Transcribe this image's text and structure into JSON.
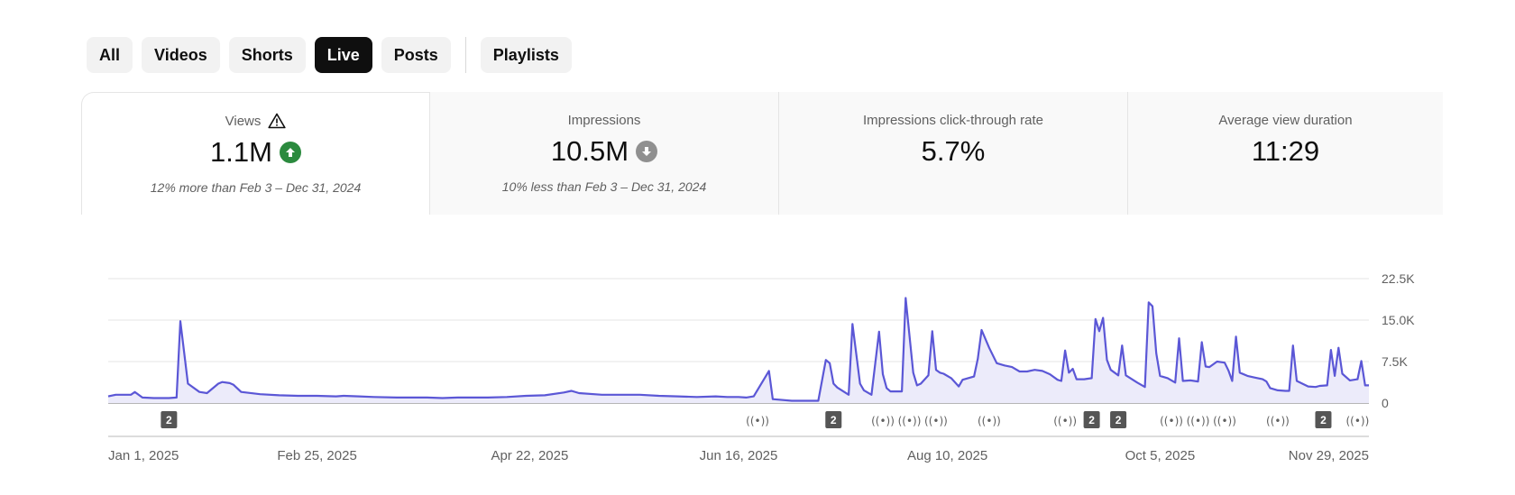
{
  "filters": {
    "chips": [
      {
        "label": "All",
        "active": false
      },
      {
        "label": "Videos",
        "active": false
      },
      {
        "label": "Shorts",
        "active": false
      },
      {
        "label": "Live",
        "active": true
      },
      {
        "label": "Posts",
        "active": false
      }
    ],
    "playlists_label": "Playlists"
  },
  "metrics": [
    {
      "title": "Views",
      "title_icon": "warning-icon",
      "value": "1.1M",
      "trend": "up",
      "trend_icon": "arrow-up-circle-icon",
      "compare": "12% more than Feb 3 – Dec 31, 2024"
    },
    {
      "title": "Impressions",
      "value": "10.5M",
      "trend": "down",
      "trend_icon": "arrow-down-circle-icon",
      "compare": "10% less than Feb 3 – Dec 31, 2024"
    },
    {
      "title": "Impressions click-through rate",
      "value": "5.7%"
    },
    {
      "title": "Average view duration",
      "value": "11:29"
    }
  ],
  "colors": {
    "line": "#5b57d6",
    "area": "#ecebfa",
    "trend_up": "#2b8a3e",
    "trend_down": "#909090",
    "active_chip": "#0f0f0f"
  },
  "chart_data": {
    "type": "area",
    "title": "",
    "xlabel": "",
    "ylabel": "",
    "ylim": [
      0,
      22500
    ],
    "y_ticks": [
      "22.5K",
      "15.0K",
      "7.5K",
      "0"
    ],
    "y_tick_values": [
      22500,
      15000,
      7500,
      0
    ],
    "x_tick_labels": [
      "Jan 1, 2025",
      "Feb 25, 2025",
      "Apr 22, 2025",
      "Jun 16, 2025",
      "Aug 10, 2025",
      "Oct 5, 2025",
      "Nov 29, 2025"
    ],
    "x_tick_days": [
      0,
      55,
      111,
      166,
      221,
      277,
      332
    ],
    "x_range_days": [
      0,
      332
    ],
    "grid": true,
    "series": [
      {
        "points": [
          [
            0,
            1200
          ],
          [
            2,
            1500
          ],
          [
            6,
            1500
          ],
          [
            7,
            2000
          ],
          [
            9,
            1000
          ],
          [
            12,
            900
          ],
          [
            16,
            900
          ],
          [
            18,
            1000
          ],
          [
            19,
            14800
          ],
          [
            21,
            3500
          ],
          [
            24,
            2000
          ],
          [
            26,
            1800
          ],
          [
            29,
            3500
          ],
          [
            30,
            3800
          ],
          [
            32,
            3600
          ],
          [
            33,
            3300
          ],
          [
            35,
            2000
          ],
          [
            40,
            1600
          ],
          [
            45,
            1400
          ],
          [
            50,
            1300
          ],
          [
            55,
            1300
          ],
          [
            60,
            1200
          ],
          [
            62,
            1300
          ],
          [
            66,
            1200
          ],
          [
            70,
            1100
          ],
          [
            76,
            1000
          ],
          [
            80,
            1000
          ],
          [
            84,
            1000
          ],
          [
            88,
            900
          ],
          [
            92,
            1000
          ],
          [
            100,
            1000
          ],
          [
            105,
            1100
          ],
          [
            110,
            1300
          ],
          [
            115,
            1400
          ],
          [
            120,
            1900
          ],
          [
            122,
            2200
          ],
          [
            124,
            1800
          ],
          [
            130,
            1500
          ],
          [
            135,
            1500
          ],
          [
            140,
            1500
          ],
          [
            145,
            1300
          ],
          [
            150,
            1200
          ],
          [
            155,
            1100
          ],
          [
            160,
            1200
          ],
          [
            163,
            1100
          ],
          [
            166,
            1100
          ],
          [
            168,
            1000
          ],
          [
            170,
            1200
          ],
          [
            174,
            5800
          ],
          [
            175,
            700
          ],
          [
            180,
            400
          ],
          [
            187,
            400
          ],
          [
            189,
            7800
          ],
          [
            190,
            7200
          ],
          [
            191,
            3500
          ],
          [
            192,
            2800
          ],
          [
            195,
            1500
          ],
          [
            196,
            14300
          ],
          [
            198,
            3500
          ],
          [
            199,
            2300
          ],
          [
            201,
            1500
          ],
          [
            203,
            12900
          ],
          [
            204,
            5200
          ],
          [
            205,
            2700
          ],
          [
            206,
            2100
          ],
          [
            209,
            2100
          ],
          [
            210,
            19000
          ],
          [
            212,
            5500
          ],
          [
            213,
            3200
          ],
          [
            214,
            3500
          ],
          [
            216,
            5000
          ],
          [
            217,
            13000
          ],
          [
            218,
            6000
          ],
          [
            219,
            5500
          ],
          [
            220,
            5300
          ],
          [
            222,
            4500
          ],
          [
            224,
            3000
          ],
          [
            225,
            4200
          ],
          [
            228,
            4800
          ],
          [
            229,
            8000
          ],
          [
            230,
            13200
          ],
          [
            232,
            10000
          ],
          [
            234,
            7200
          ],
          [
            236,
            6800
          ],
          [
            238,
            6500
          ],
          [
            240,
            5700
          ],
          [
            242,
            5700
          ],
          [
            244,
            6000
          ],
          [
            246,
            5800
          ],
          [
            248,
            5200
          ],
          [
            250,
            4200
          ],
          [
            251,
            4000
          ],
          [
            252,
            9500
          ],
          [
            253,
            5500
          ],
          [
            254,
            6200
          ],
          [
            255,
            4300
          ],
          [
            257,
            4300
          ],
          [
            259,
            4500
          ],
          [
            260,
            15200
          ],
          [
            261,
            13000
          ],
          [
            262,
            15400
          ],
          [
            263,
            7800
          ],
          [
            264,
            6000
          ],
          [
            266,
            5000
          ],
          [
            267,
            10400
          ],
          [
            268,
            5000
          ],
          [
            271,
            3700
          ],
          [
            273,
            2900
          ],
          [
            274,
            18200
          ],
          [
            275,
            17500
          ],
          [
            276,
            9000
          ],
          [
            277,
            4900
          ],
          [
            279,
            4500
          ],
          [
            281,
            3700
          ],
          [
            282,
            11700
          ],
          [
            283,
            4000
          ],
          [
            285,
            4100
          ],
          [
            287,
            3900
          ],
          [
            288,
            11000
          ],
          [
            289,
            6600
          ],
          [
            290,
            6500
          ],
          [
            292,
            7500
          ],
          [
            294,
            7300
          ],
          [
            295,
            5900
          ],
          [
            296,
            4000
          ],
          [
            297,
            12000
          ],
          [
            298,
            5500
          ],
          [
            300,
            4900
          ],
          [
            302,
            4600
          ],
          [
            304,
            4300
          ],
          [
            305,
            3900
          ],
          [
            306,
            2700
          ],
          [
            308,
            2300
          ],
          [
            310,
            2200
          ],
          [
            311,
            2200
          ],
          [
            312,
            10400
          ],
          [
            313,
            4000
          ],
          [
            316,
            3000
          ],
          [
            318,
            2900
          ],
          [
            319,
            3100
          ],
          [
            321,
            3200
          ],
          [
            322,
            9600
          ],
          [
            323,
            4900
          ],
          [
            324,
            10000
          ],
          [
            325,
            5300
          ],
          [
            327,
            4100
          ],
          [
            329,
            4300
          ],
          [
            330,
            7600
          ],
          [
            331,
            3200
          ],
          [
            332,
            3200
          ]
        ]
      }
    ],
    "annotations": [
      {
        "day": 16,
        "kind": "badge",
        "text": "2"
      },
      {
        "day": 171,
        "kind": "live",
        "text": "((•))"
      },
      {
        "day": 191,
        "kind": "badge",
        "text": "2"
      },
      {
        "day": 204,
        "kind": "live",
        "text": "((•))"
      },
      {
        "day": 211,
        "kind": "live",
        "text": "((•))"
      },
      {
        "day": 218,
        "kind": "live",
        "text": "((•))"
      },
      {
        "day": 232,
        "kind": "live",
        "text": "((•))"
      },
      {
        "day": 252,
        "kind": "live",
        "text": "((•))"
      },
      {
        "day": 259,
        "kind": "badge",
        "text": "2"
      },
      {
        "day": 266,
        "kind": "badge",
        "text": "2"
      },
      {
        "day": 280,
        "kind": "live",
        "text": "((•))"
      },
      {
        "day": 287,
        "kind": "live",
        "text": "((•))"
      },
      {
        "day": 294,
        "kind": "live",
        "text": "((•))"
      },
      {
        "day": 308,
        "kind": "live",
        "text": "((•))"
      },
      {
        "day": 320,
        "kind": "badge",
        "text": "2"
      },
      {
        "day": 329,
        "kind": "live",
        "text": "((•))"
      }
    ]
  }
}
